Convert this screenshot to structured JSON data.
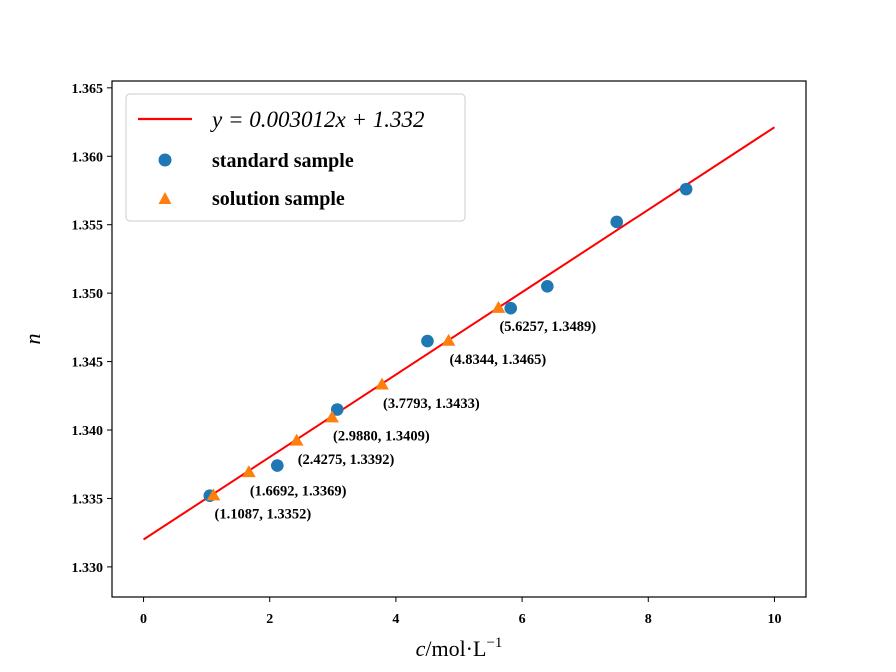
{
  "chart_data": {
    "type": "scatter",
    "title": "",
    "xlabel_var": "c",
    "xlabel_unit": "/mol·L",
    "xlabel_exp": "−1",
    "ylabel": "n",
    "xlim": [
      -0.5,
      10.5
    ],
    "ylim": [
      1.3278,
      1.3655
    ],
    "xticks": [
      0,
      2,
      4,
      6,
      8,
      10
    ],
    "xtick_labels": [
      "0",
      "2",
      "4",
      "6",
      "8",
      "10"
    ],
    "yticks": [
      1.33,
      1.335,
      1.34,
      1.345,
      1.35,
      1.355,
      1.36,
      1.365
    ],
    "ytick_labels": [
      "1.330",
      "1.335",
      "1.340",
      "1.345",
      "1.350",
      "1.355",
      "1.360",
      "1.365"
    ],
    "grid": false,
    "legend_position": "top-left",
    "colors": {
      "fit": "#ff0000",
      "standard": "#1f77b4",
      "solution": "#ff7f0e"
    },
    "fit": {
      "label": "y = 0.003012x + 1.332",
      "slope": 0.003012,
      "intercept": 1.332,
      "x_range": [
        0,
        10
      ]
    },
    "series": [
      {
        "name": "standard sample",
        "marker": "circle",
        "x": [
          1.05,
          2.12,
          3.07,
          4.5,
          5.82,
          6.4,
          7.5,
          8.6
        ],
        "y": [
          1.3352,
          1.3374,
          1.3415,
          1.3465,
          1.3489,
          1.3505,
          1.3552,
          1.3576
        ]
      },
      {
        "name": "solution sample",
        "marker": "triangle",
        "x": [
          1.1087,
          1.6692,
          2.4275,
          2.988,
          3.7793,
          4.8344,
          5.6257
        ],
        "y": [
          1.3352,
          1.3369,
          1.3392,
          1.3409,
          1.3433,
          1.3465,
          1.3489
        ]
      }
    ],
    "annotations": [
      {
        "text": "(1.1087, 1.3352)",
        "x": 1.1087,
        "y": 1.3352
      },
      {
        "text": "(1.6692, 1.3369)",
        "x": 1.6692,
        "y": 1.3369
      },
      {
        "text": "(2.4275, 1.3392)",
        "x": 2.4275,
        "y": 1.3392
      },
      {
        "text": "(2.9880, 1.3409)",
        "x": 2.988,
        "y": 1.3409
      },
      {
        "text": "(3.7793, 1.3433)",
        "x": 3.7793,
        "y": 1.3433
      },
      {
        "text": "(4.8344, 1.3465)",
        "x": 4.8344,
        "y": 1.3465
      },
      {
        "text": "(5.6257, 1.3489)",
        "x": 5.6257,
        "y": 1.3489
      }
    ]
  }
}
